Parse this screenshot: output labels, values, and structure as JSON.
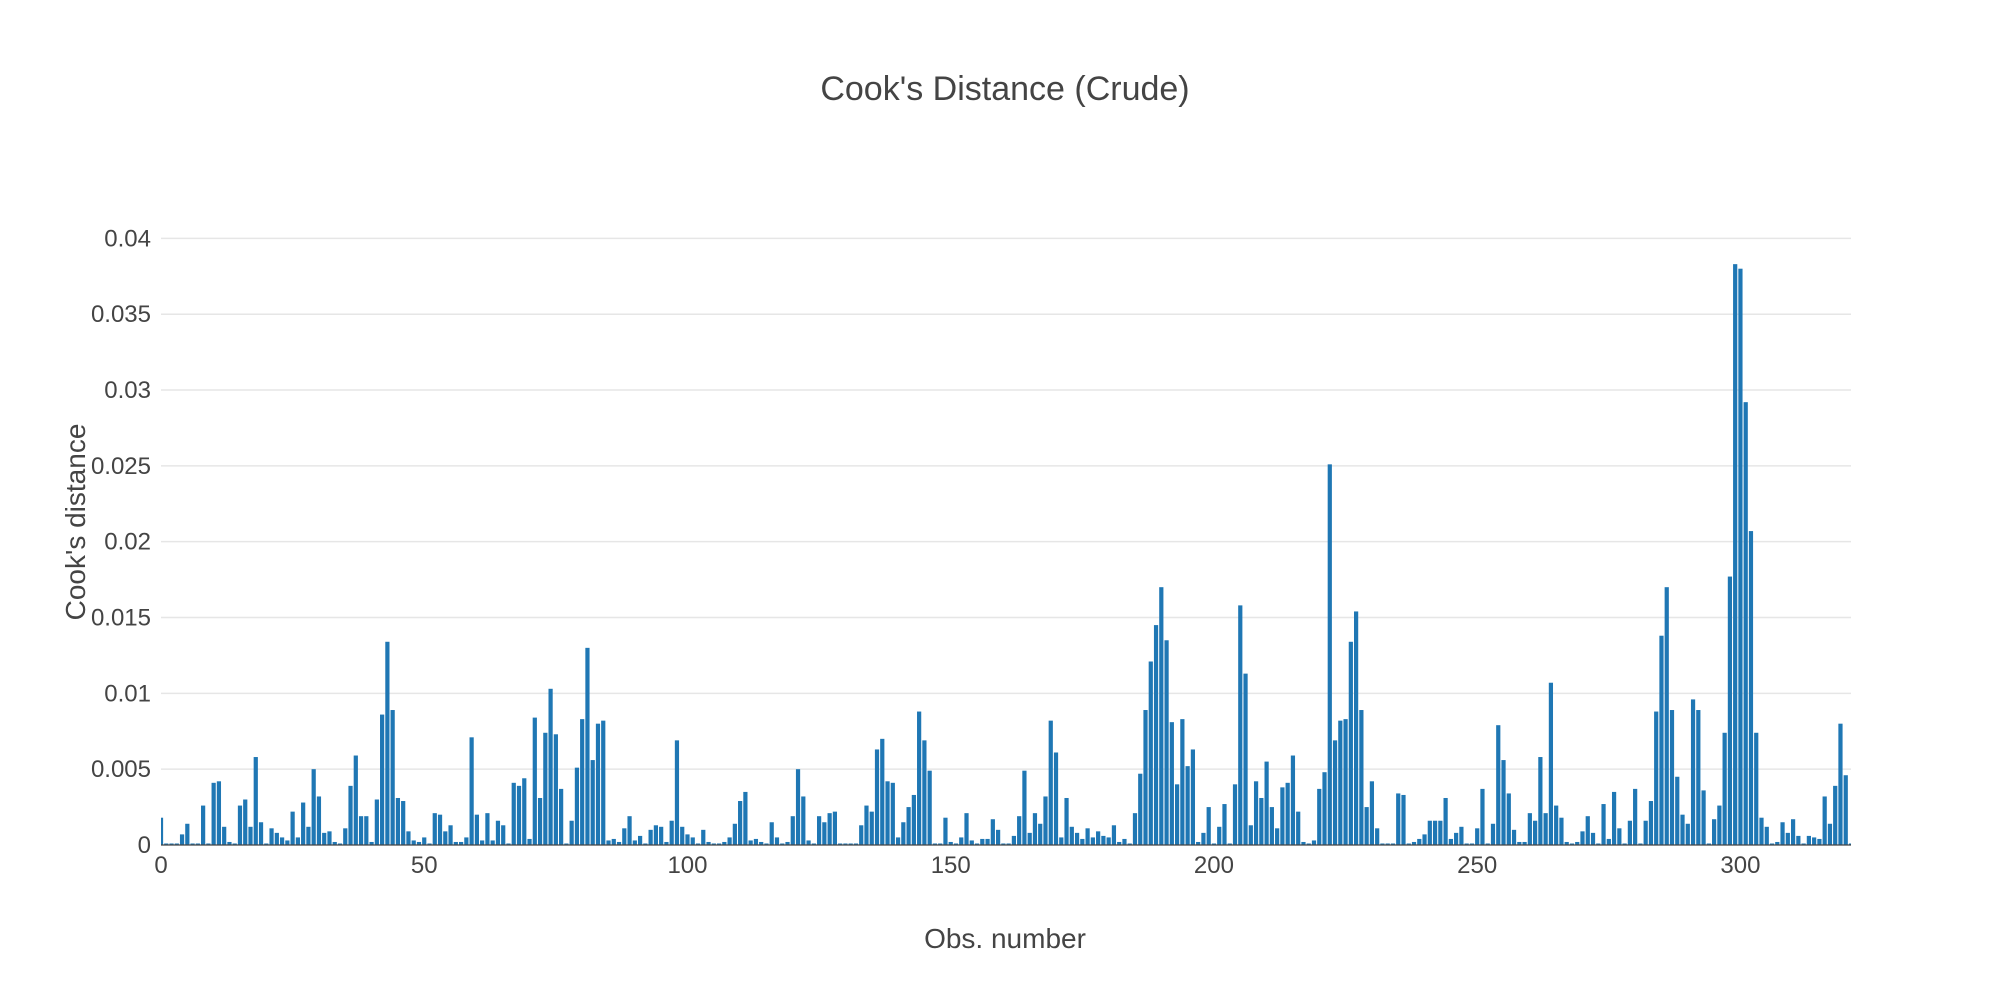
{
  "chart_data": {
    "type": "bar",
    "title": "Cook's Distance (Crude)",
    "xlabel": "Obs. number",
    "ylabel": "Cook's distance",
    "xlim": [
      0,
      321
    ],
    "ylim": [
      0,
      0.0422
    ],
    "grid": true,
    "legend": "none",
    "color": "#1f77b4",
    "x_ticks": [
      0,
      50,
      100,
      150,
      200,
      250,
      300
    ],
    "x_tick_labels": [
      "0",
      "50",
      "100",
      "150",
      "200",
      "250",
      "300"
    ],
    "y_ticks": [
      0,
      0.005,
      0.01,
      0.015,
      0.02,
      0.025,
      0.03,
      0.035,
      0.04
    ],
    "y_tick_labels": [
      "0",
      "0.005",
      "0.01",
      "0.015",
      "0.02",
      "0.025",
      "0.03",
      "0.035",
      "0.04"
    ],
    "x_start": 0,
    "values": [
      0.0018,
      0.0001,
      0.0001,
      0.0001,
      0.0007,
      0.0014,
      0.0001,
      0.0001,
      0.0026,
      0.0001,
      0.0041,
      0.0042,
      0.0012,
      0.0002,
      0.0001,
      0.0026,
      0.003,
      0.0012,
      0.0058,
      0.0015,
      0.0001,
      0.0011,
      0.0008,
      0.0005,
      0.0003,
      0.0022,
      0.0005,
      0.0028,
      0.0012,
      0.005,
      0.0032,
      0.0008,
      0.0009,
      0.0002,
      0.0001,
      0.0011,
      0.0039,
      0.0059,
      0.0019,
      0.0019,
      0.0002,
      0.003,
      0.0086,
      0.0134,
      0.0089,
      0.0031,
      0.0029,
      0.0009,
      0.0003,
      0.0002,
      0.0005,
      0.0001,
      0.0021,
      0.002,
      0.0009,
      0.0013,
      0.0002,
      0.0002,
      0.0005,
      0.0071,
      0.002,
      0.0003,
      0.0021,
      0.0003,
      0.0016,
      0.0013,
      0.0001,
      0.0041,
      0.0039,
      0.0044,
      0.0004,
      0.0084,
      0.0031,
      0.0074,
      0.0103,
      0.0073,
      0.0037,
      0.0001,
      0.0016,
      0.0051,
      0.0083,
      0.013,
      0.0056,
      0.008,
      0.0082,
      0.0003,
      0.0004,
      0.0002,
      0.0011,
      0.0019,
      0.0003,
      0.0006,
      0.0001,
      0.001,
      0.0013,
      0.0012,
      0.0002,
      0.0016,
      0.0069,
      0.0012,
      0.0007,
      0.0005,
      0.0001,
      0.001,
      0.0002,
      0.0001,
      0.0001,
      0.0002,
      0.0005,
      0.0014,
      0.0029,
      0.0035,
      0.0003,
      0.0004,
      0.0002,
      0.0001,
      0.0015,
      0.0005,
      0.0001,
      0.0002,
      0.0019,
      0.005,
      0.0032,
      0.0003,
      0.0001,
      0.0019,
      0.0015,
      0.0021,
      0.0022,
      0.0001,
      0.0001,
      0.0001,
      0.0001,
      0.0013,
      0.0026,
      0.0022,
      0.0063,
      0.007,
      0.0042,
      0.0041,
      0.0005,
      0.0015,
      0.0025,
      0.0033,
      0.0088,
      0.0069,
      0.0049,
      0.0001,
      0.0001,
      0.0018,
      0.0002,
      0.0001,
      0.0005,
      0.0021,
      0.0003,
      0.0001,
      0.0004,
      0.0004,
      0.0017,
      0.001,
      0.0001,
      0.0001,
      0.0006,
      0.0019,
      0.0049,
      0.0008,
      0.0021,
      0.0014,
      0.0032,
      0.0082,
      0.0061,
      0.0005,
      0.0031,
      0.0012,
      0.0008,
      0.0004,
      0.0011,
      0.0005,
      0.0009,
      0.0006,
      0.0005,
      0.0013,
      0.0002,
      0.0004,
      0.0001,
      0.0021,
      0.0047,
      0.0089,
      0.0121,
      0.0145,
      0.017,
      0.0135,
      0.0081,
      0.004,
      0.0083,
      0.0052,
      0.0063,
      0.0002,
      0.0008,
      0.0025,
      0.0001,
      0.0012,
      0.0027,
      0.0001,
      0.004,
      0.0158,
      0.0113,
      0.0013,
      0.0042,
      0.0031,
      0.0055,
      0.0025,
      0.0011,
      0.0038,
      0.0041,
      0.0059,
      0.0022,
      0.0002,
      0.0001,
      0.0003,
      0.0037,
      0.0048,
      0.0251,
      0.0069,
      0.0082,
      0.0083,
      0.0134,
      0.0154,
      0.0089,
      0.0025,
      0.0042,
      0.0011,
      0.0001,
      0.0001,
      0.0001,
      0.0034,
      0.0033,
      0.0001,
      0.0002,
      0.0004,
      0.0007,
      0.0016,
      0.0016,
      0.0016,
      0.0031,
      0.0004,
      0.0008,
      0.0012,
      0.0001,
      0.0001,
      0.0011,
      0.0037,
      0.0001,
      0.0014,
      0.0079,
      0.0056,
      0.0034,
      0.001,
      0.0002,
      0.0002,
      0.0021,
      0.0016,
      0.0058,
      0.0021,
      0.0107,
      0.0026,
      0.0018,
      0.0002,
      0.0001,
      0.0002,
      0.0009,
      0.0019,
      0.0008,
      0.0001,
      0.0027,
      0.0004,
      0.0035,
      0.0011,
      0.0001,
      0.0016,
      0.0037,
      0.0001,
      0.0016,
      0.0029,
      0.0088,
      0.0138,
      0.017,
      0.0089,
      0.0045,
      0.002,
      0.0014,
      0.0096,
      0.0089,
      0.0036,
      0.0001,
      0.0017,
      0.0026,
      0.0074,
      0.0177,
      0.0383,
      0.038,
      0.0292,
      0.0207,
      0.0074,
      0.0018,
      0.0012,
      0.0001,
      0.0002,
      0.0015,
      0.0008,
      0.0017,
      0.0006,
      0.0001,
      0.0006,
      0.0005,
      0.0004,
      0.0032,
      0.0014,
      0.0039,
      0.008,
      0.0046,
      0.0001,
      0.0017,
      0.0003
    ]
  }
}
